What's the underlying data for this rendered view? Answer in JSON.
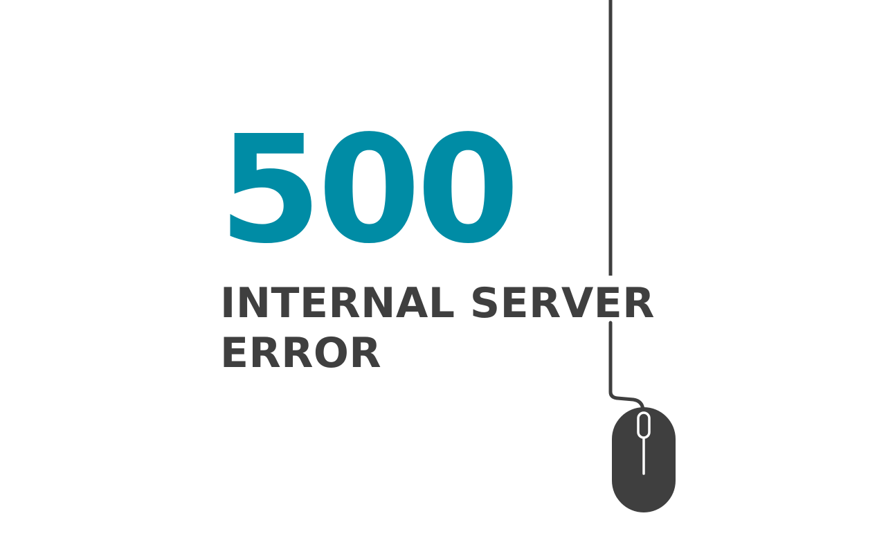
{
  "error": {
    "code": "500",
    "message_line1": "INTERNAL SERVER",
    "message_line2": "ERROR"
  },
  "colors": {
    "accent": "#008ca5",
    "text": "#3f3f3f",
    "background": "#ffffff"
  },
  "illustration": {
    "icon": "computer-mouse-icon"
  }
}
